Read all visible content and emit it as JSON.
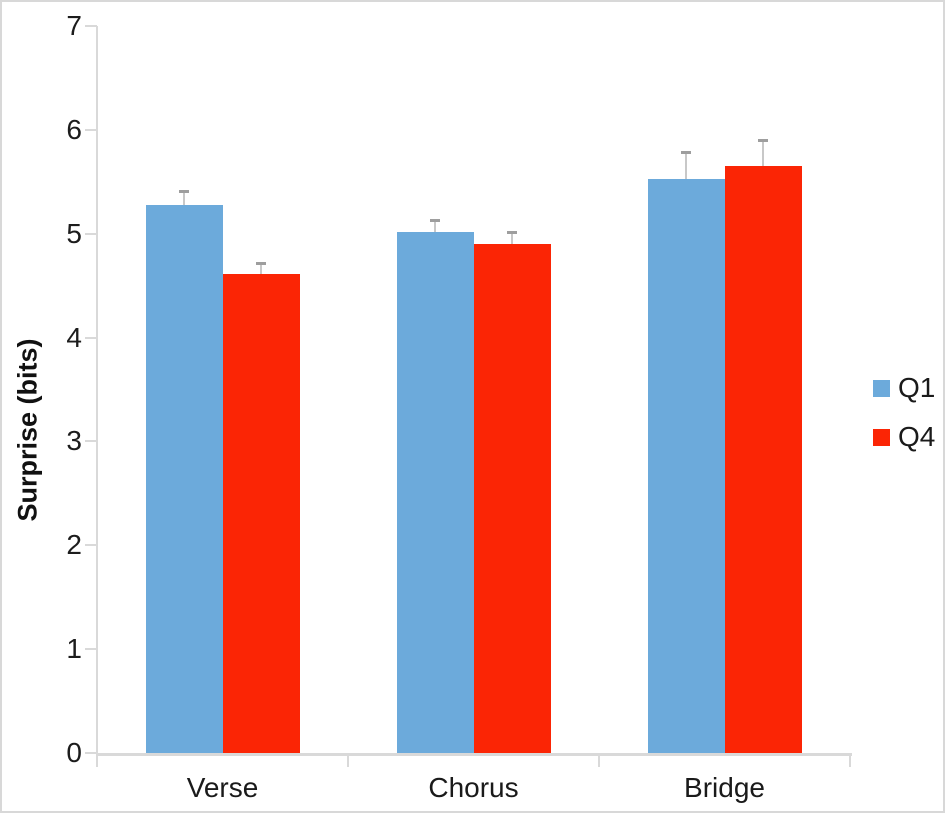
{
  "chart_data": {
    "type": "bar",
    "title": "",
    "xlabel": "",
    "ylabel": "Surprise (bits)",
    "categories": [
      "Verse",
      "Chorus",
      "Bridge"
    ],
    "series": [
      {
        "name": "Q1",
        "color": "#6CAADB",
        "values": [
          5.28,
          5.02,
          5.53
        ],
        "errors": [
          0.12,
          0.1,
          0.25
        ]
      },
      {
        "name": "Q4",
        "color": "#FB2505",
        "values": [
          4.61,
          4.9,
          5.65
        ],
        "errors": [
          0.1,
          0.11,
          0.24
        ]
      }
    ],
    "ylim": [
      0,
      7
    ],
    "yticks": [
      0,
      1,
      2,
      3,
      4,
      5,
      6,
      7
    ],
    "grid": false,
    "legend_position": "right",
    "error_bars": "positive-only",
    "styles": {
      "axis_line_color": "#D9D9D9",
      "error_stem_color": "#C8C8C8",
      "error_cap_color": "#9E9E9E",
      "tick_text_color": "#1C1C1C"
    }
  }
}
